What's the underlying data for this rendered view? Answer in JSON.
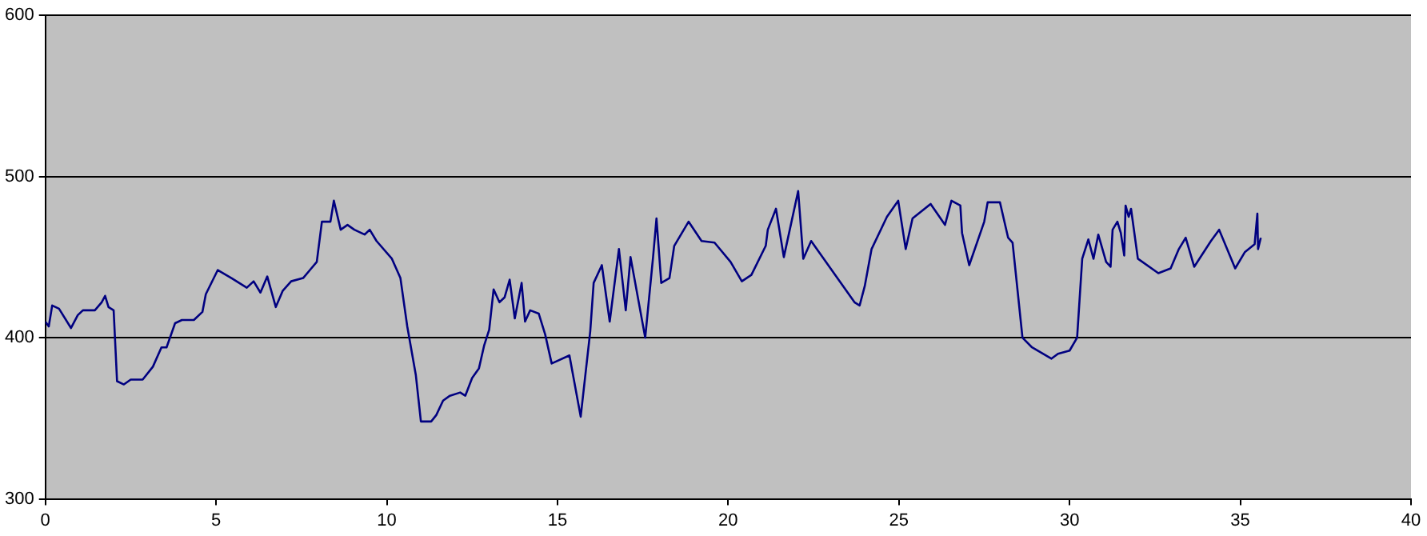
{
  "chart_data": {
    "type": "line",
    "xlim": [
      0,
      40
    ],
    "xticks": [
      0,
      5,
      10,
      15,
      20,
      25,
      30,
      35,
      40
    ],
    "ylim": [
      300,
      600
    ],
    "yticks": [
      300,
      400,
      500,
      600
    ],
    "grid": "y",
    "legend": false,
    "marker": "none",
    "line_style": "solid",
    "series": [
      {
        "color": "#000080",
        "x": [
          0,
          0.1,
          0.2,
          0.4,
          0.75,
          0.95,
          1.1,
          1.45,
          1.65,
          1.75,
          1.85,
          2.0,
          2.1,
          2.3,
          2.5,
          2.85,
          3.15,
          3.4,
          3.55,
          3.8,
          4.0,
          4.35,
          4.6,
          4.7,
          5.05,
          5.45,
          5.9,
          6.1,
          6.3,
          6.5,
          6.75,
          6.95,
          7.2,
          7.55,
          7.75,
          7.95,
          8.1,
          8.35,
          8.45,
          8.65,
          8.85,
          9.05,
          9.35,
          9.5,
          9.7,
          10.15,
          10.4,
          10.6,
          10.85,
          11.0,
          11.3,
          11.45,
          11.65,
          11.85,
          12.15,
          12.3,
          12.5,
          12.7,
          12.85,
          13.0,
          13.13,
          13.3,
          13.45,
          13.6,
          13.75,
          13.95,
          14.05,
          14.2,
          14.45,
          14.64,
          14.83,
          15.35,
          15.68,
          15.96,
          16.06,
          16.3,
          16.53,
          16.8,
          17.0,
          17.14,
          17.57,
          17.8,
          17.9,
          18.04,
          18.28,
          18.42,
          18.84,
          19.22,
          19.6,
          20.07,
          20.4,
          20.68,
          21.1,
          21.16,
          21.4,
          21.63,
          22.05,
          22.2,
          22.43,
          23.7,
          23.85,
          24.0,
          24.2,
          24.65,
          24.98,
          25.2,
          25.4,
          25.93,
          26.35,
          26.54,
          26.8,
          26.85,
          27.06,
          27.5,
          27.6,
          27.96,
          28.2,
          28.33,
          28.62,
          28.9,
          29.47,
          29.66,
          30.0,
          30.22,
          30.37,
          30.55,
          30.7,
          30.84,
          31.07,
          31.2,
          31.26,
          31.4,
          31.5,
          31.6,
          31.64,
          31.73,
          31.8,
          32.0,
          32.6,
          32.96,
          33.2,
          33.4,
          33.65,
          34.14,
          34.38,
          34.85,
          35.13,
          35.42,
          35.5,
          35.52,
          35.6
        ],
        "values": [
          410,
          407,
          420,
          418,
          406,
          414,
          417,
          417,
          422,
          426,
          419,
          417,
          373,
          371,
          374,
          374,
          382,
          394,
          394,
          409,
          411,
          411,
          416,
          427,
          442,
          437,
          431,
          435,
          428,
          438,
          419,
          429,
          435,
          437,
          442,
          447,
          472,
          472,
          485,
          467,
          470,
          467,
          464,
          467,
          460,
          449,
          437,
          407,
          377,
          348,
          348,
          352,
          361,
          364,
          366,
          364,
          375,
          381,
          395,
          405,
          430,
          422,
          425,
          436,
          412,
          434,
          410,
          417,
          415,
          402,
          384,
          389,
          351,
          404,
          434,
          445,
          410,
          455,
          417,
          450,
          400,
          450,
          474,
          434,
          437,
          457,
          472,
          460,
          459,
          447,
          435,
          439,
          457,
          467,
          480,
          450,
          491,
          449,
          460,
          422,
          420,
          432,
          455,
          475,
          485,
          455,
          474,
          483,
          470,
          485,
          482,
          465,
          445,
          472,
          484,
          484,
          462,
          459,
          400,
          394,
          387,
          390,
          392,
          400,
          449,
          461,
          449,
          464,
          447,
          444,
          467,
          472,
          465,
          451,
          482,
          475,
          480,
          449,
          440,
          443,
          455,
          462,
          444,
          460,
          467,
          443,
          453,
          458,
          477,
          455,
          462
        ]
      }
    ]
  }
}
